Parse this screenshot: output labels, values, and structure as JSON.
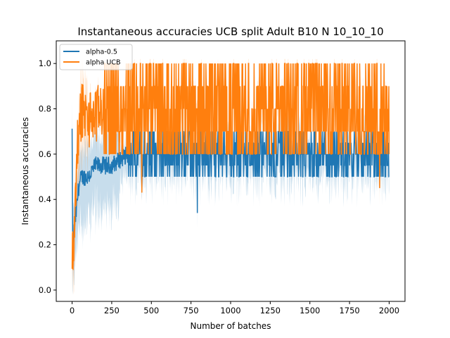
{
  "chart_data": {
    "type": "line",
    "title": "Instantaneous accuracies UCB split Adult B10 N 10_10_10",
    "xlabel": "Number of batches",
    "ylabel": "Instantaneous accuracies",
    "xlim": [
      -100,
      2100
    ],
    "ylim": [
      -0.05,
      1.1
    ],
    "xticks": [
      0,
      250,
      500,
      750,
      1000,
      1250,
      1500,
      1750,
      2000
    ],
    "yticks": [
      0.0,
      0.2,
      0.4,
      0.6,
      0.8,
      1.0
    ],
    "xtick_labels": [
      "0",
      "250",
      "500",
      "750",
      "1000",
      "1250",
      "1500",
      "1750",
      "2000"
    ],
    "ytick_labels": [
      "0.0",
      "0.2",
      "0.4",
      "0.6",
      "0.8",
      "1.0"
    ],
    "grid": false,
    "legend_position": "upper-left",
    "x_range": [
      0,
      2000
    ],
    "series": [
      {
        "name": "alpha-0.5",
        "color": "#1f77b4",
        "shaded_band": true,
        "levels": [
          0.5,
          0.55,
          0.6,
          0.65,
          0.7
        ],
        "approx_mean": 0.6,
        "early_values": [
          {
            "x": 0,
            "y": 0.7
          },
          {
            "x": 3,
            "y": 0.2
          },
          {
            "x": 10,
            "y": 0.25
          },
          {
            "x": 20,
            "y": 0.3
          },
          {
            "x": 40,
            "y": 0.45
          },
          {
            "x": 60,
            "y": 0.5
          },
          {
            "x": 100,
            "y": 0.5
          },
          {
            "x": 150,
            "y": 0.55
          },
          {
            "x": 250,
            "y": 0.55
          },
          {
            "x": 350,
            "y": 0.6
          }
        ],
        "notable_dips": [
          {
            "x": 790,
            "y": 0.34
          },
          {
            "x": 440,
            "y": 0.45
          }
        ]
      },
      {
        "name": "alpha UCB",
        "color": "#ff7f0e",
        "shaded_band": true,
        "levels": [
          0.6,
          0.7,
          0.8,
          0.9,
          1.0
        ],
        "approx_mean": 0.8,
        "early_values": [
          {
            "x": 0,
            "y": 0.2
          },
          {
            "x": 5,
            "y": 0.15
          },
          {
            "x": 15,
            "y": 0.3
          },
          {
            "x": 30,
            "y": 0.6
          },
          {
            "x": 60,
            "y": 0.8
          },
          {
            "x": 100,
            "y": 0.75
          },
          {
            "x": 200,
            "y": 0.8
          }
        ],
        "notable_dips": [
          {
            "x": 440,
            "y": 0.43
          },
          {
            "x": 1940,
            "y": 0.45
          }
        ]
      }
    ]
  }
}
